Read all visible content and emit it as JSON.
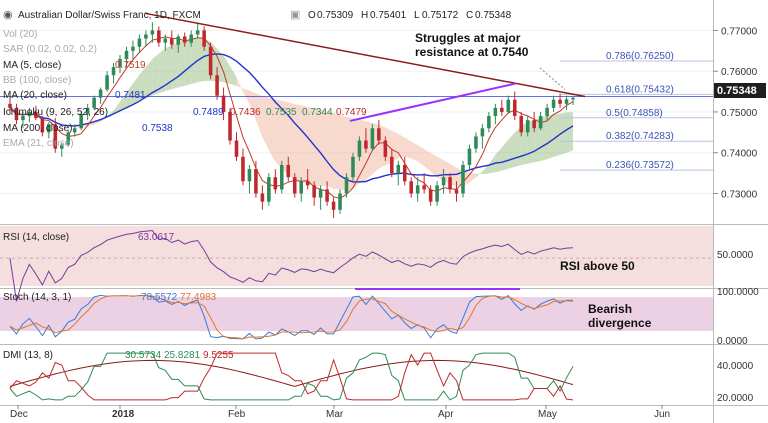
{
  "header": {
    "title": "Australian Dollar/Swiss Franc, 1D, FXCM",
    "ohlc": [
      {
        "label": "O",
        "value": "0.75309"
      },
      {
        "label": "H",
        "value": "0.75401"
      },
      {
        "label": "L",
        "value": "0.75172"
      },
      {
        "label": "C",
        "value": "0.75348"
      }
    ]
  },
  "colors": {
    "up": "#2e8b57",
    "down": "#c0282d",
    "ma5": "#c0392b",
    "ma20": "#2233cc",
    "trendline": "#8b1a1a",
    "highs_line": "#9b30ff",
    "kumo_bull": "#9ec28a",
    "kumo_bear": "#f0b9a6",
    "fib": "#3a55b5",
    "rsi_bg": "#f3d9d9",
    "stoch_bg": "#e8c8e0"
  },
  "legend": [
    {
      "label": "Vol (20)",
      "value": ""
    },
    {
      "label": "SAR (0.02, 0.02, 0.2)",
      "value": ""
    },
    {
      "label": "MA (5, close)",
      "value": "0.7519"
    },
    {
      "label": "BB (100, close)",
      "value": ""
    },
    {
      "label": "MA (20, close)",
      "value": "0.7481"
    },
    {
      "label": "Ichimoku (9, 26, 52, 26)",
      "values": [
        "0.7489",
        "0.7436",
        "0.7535",
        "0.7344",
        "0.7479"
      ]
    },
    {
      "label": "MA (200, close)",
      "value": "0.7538"
    },
    {
      "label": "EMA (21, close)",
      "value": ""
    }
  ],
  "annotations": {
    "resistance": [
      "Struggles at major",
      "resistance at 0.7540"
    ],
    "rsi_note": "RSI above 50",
    "stoch_note": [
      "Bearish",
      "divergence"
    ]
  },
  "price_badge": "0.75348",
  "fib_levels": [
    {
      "label": "0.786(0.76250)",
      "value": 0.7625
    },
    {
      "label": "0.618(0.75432)",
      "value": 0.75432
    },
    {
      "label": "0.5(0.74858)",
      "value": 0.74858
    },
    {
      "label": "0.382(0.74283)",
      "value": 0.74283
    },
    {
      "label": "0.236(0.73572)",
      "value": 0.73572
    }
  ],
  "rsi": {
    "label": "RSI (14, close)",
    "value": "63.0617",
    "ticks": [
      "50.0000"
    ]
  },
  "stoch": {
    "label": "Stoch (14, 3, 1)",
    "values": [
      "78.5572",
      "77.4983"
    ],
    "ticks": [
      "100.0000",
      "0.0000"
    ]
  },
  "dmi": {
    "label": "DMI (13, 8)",
    "values": [
      "30.5734",
      "25.8281",
      "9.5255"
    ],
    "ticks": [
      "40.0000",
      "20.0000"
    ]
  },
  "chart_data": {
    "type": "candlestick",
    "x_ticks": [
      "Dec",
      "2018",
      "Feb",
      "Mar",
      "Apr",
      "May",
      "Jun"
    ],
    "y_ticks": [
      "0.77000",
      "0.76000",
      "0.75000",
      "0.74000",
      "0.73000"
    ],
    "ylim": [
      0.7235,
      0.7755
    ],
    "candles": [
      [
        0.752,
        0.7545,
        0.7495,
        0.751
      ],
      [
        0.751,
        0.752,
        0.747,
        0.748
      ],
      [
        0.748,
        0.75,
        0.746,
        0.749
      ],
      [
        0.749,
        0.751,
        0.7475,
        0.75
      ],
      [
        0.75,
        0.7515,
        0.748,
        0.7485
      ],
      [
        0.7485,
        0.749,
        0.744,
        0.745
      ],
      [
        0.745,
        0.7475,
        0.7435,
        0.747
      ],
      [
        0.747,
        0.7485,
        0.74,
        0.741
      ],
      [
        0.741,
        0.7425,
        0.739,
        0.742
      ],
      [
        0.742,
        0.7455,
        0.7415,
        0.745
      ],
      [
        0.745,
        0.747,
        0.744,
        0.746
      ],
      [
        0.746,
        0.75,
        0.7455,
        0.7495
      ],
      [
        0.7495,
        0.752,
        0.748,
        0.751
      ],
      [
        0.751,
        0.754,
        0.7505,
        0.7535
      ],
      [
        0.7535,
        0.756,
        0.752,
        0.7555
      ],
      [
        0.7555,
        0.76,
        0.755,
        0.759
      ],
      [
        0.759,
        0.762,
        0.757,
        0.761
      ],
      [
        0.761,
        0.764,
        0.7595,
        0.763
      ],
      [
        0.763,
        0.766,
        0.761,
        0.765
      ],
      [
        0.765,
        0.7675,
        0.763,
        0.766
      ],
      [
        0.766,
        0.769,
        0.7645,
        0.768
      ],
      [
        0.768,
        0.77,
        0.766,
        0.769
      ],
      [
        0.769,
        0.772,
        0.767,
        0.77
      ],
      [
        0.77,
        0.771,
        0.766,
        0.767
      ],
      [
        0.767,
        0.769,
        0.765,
        0.768
      ],
      [
        0.768,
        0.77,
        0.7655,
        0.7665
      ],
      [
        0.7665,
        0.769,
        0.7645,
        0.7685
      ],
      [
        0.7685,
        0.7695,
        0.766,
        0.767
      ],
      [
        0.767,
        0.77,
        0.766,
        0.769
      ],
      [
        0.769,
        0.772,
        0.768,
        0.77
      ],
      [
        0.77,
        0.771,
        0.765,
        0.766
      ],
      [
        0.766,
        0.767,
        0.758,
        0.759
      ],
      [
        0.759,
        0.761,
        0.753,
        0.754
      ],
      [
        0.754,
        0.756,
        0.748,
        0.75
      ],
      [
        0.75,
        0.751,
        0.742,
        0.743
      ],
      [
        0.743,
        0.745,
        0.738,
        0.739
      ],
      [
        0.739,
        0.741,
        0.732,
        0.733
      ],
      [
        0.733,
        0.737,
        0.73,
        0.736
      ],
      [
        0.736,
        0.738,
        0.729,
        0.73
      ],
      [
        0.73,
        0.732,
        0.726,
        0.728
      ],
      [
        0.728,
        0.735,
        0.727,
        0.734
      ],
      [
        0.734,
        0.736,
        0.73,
        0.731
      ],
      [
        0.731,
        0.738,
        0.73,
        0.737
      ],
      [
        0.737,
        0.739,
        0.733,
        0.734
      ],
      [
        0.734,
        0.735,
        0.729,
        0.73
      ],
      [
        0.73,
        0.734,
        0.728,
        0.733
      ],
      [
        0.733,
        0.736,
        0.731,
        0.732
      ],
      [
        0.732,
        0.733,
        0.727,
        0.729
      ],
      [
        0.729,
        0.732,
        0.726,
        0.731
      ],
      [
        0.731,
        0.733,
        0.727,
        0.728
      ],
      [
        0.728,
        0.729,
        0.724,
        0.726
      ],
      [
        0.726,
        0.731,
        0.725,
        0.73
      ],
      [
        0.73,
        0.735,
        0.729,
        0.734
      ],
      [
        0.734,
        0.74,
        0.733,
        0.739
      ],
      [
        0.739,
        0.744,
        0.738,
        0.743
      ],
      [
        0.743,
        0.746,
        0.74,
        0.741
      ],
      [
        0.741,
        0.747,
        0.7405,
        0.746
      ],
      [
        0.746,
        0.748,
        0.742,
        0.743
      ],
      [
        0.743,
        0.744,
        0.738,
        0.739
      ],
      [
        0.739,
        0.741,
        0.734,
        0.735
      ],
      [
        0.735,
        0.738,
        0.732,
        0.737
      ],
      [
        0.737,
        0.739,
        0.732,
        0.733
      ],
      [
        0.733,
        0.734,
        0.729,
        0.73
      ],
      [
        0.73,
        0.734,
        0.728,
        0.732
      ],
      [
        0.732,
        0.735,
        0.73,
        0.731
      ],
      [
        0.731,
        0.732,
        0.727,
        0.728
      ],
      [
        0.728,
        0.733,
        0.727,
        0.732
      ],
      [
        0.732,
        0.736,
        0.73,
        0.734
      ],
      [
        0.734,
        0.735,
        0.73,
        0.731
      ],
      [
        0.731,
        0.733,
        0.728,
        0.73
      ],
      [
        0.73,
        0.738,
        0.729,
        0.737
      ],
      [
        0.737,
        0.742,
        0.736,
        0.741
      ],
      [
        0.741,
        0.745,
        0.74,
        0.744
      ],
      [
        0.744,
        0.747,
        0.741,
        0.746
      ],
      [
        0.746,
        0.75,
        0.745,
        0.749
      ],
      [
        0.749,
        0.752,
        0.747,
        0.751
      ],
      [
        0.751,
        0.753,
        0.749,
        0.75
      ],
      [
        0.75,
        0.754,
        0.7495,
        0.753
      ],
      [
        0.753,
        0.755,
        0.748,
        0.749
      ],
      [
        0.749,
        0.75,
        0.744,
        0.745
      ],
      [
        0.745,
        0.749,
        0.744,
        0.748
      ],
      [
        0.748,
        0.75,
        0.745,
        0.746
      ],
      [
        0.746,
        0.75,
        0.7455,
        0.749
      ],
      [
        0.749,
        0.752,
        0.748,
        0.751
      ],
      [
        0.751,
        0.754,
        0.75,
        0.753
      ],
      [
        0.753,
        0.7545,
        0.751,
        0.752
      ],
      [
        0.752,
        0.754,
        0.7505,
        0.7531
      ],
      [
        0.7531,
        0.754,
        0.7517,
        0.75348
      ]
    ]
  }
}
